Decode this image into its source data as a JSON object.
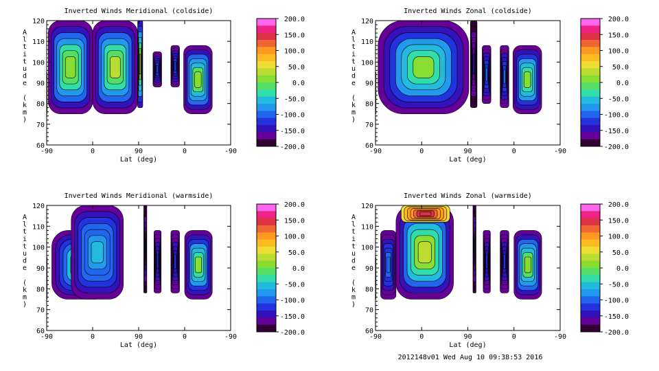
{
  "footer_text": "2012148v01 Wed Aug 10 09:38:53 2016",
  "colorbar": {
    "ticks": [
      "200.0",
      "150.0",
      "100.0",
      "50.0",
      "0.0",
      "-50.0",
      "-100.0",
      "-150.0",
      "-200.0"
    ],
    "colors": [
      "#ff66ee",
      "#ee2288",
      "#dd3344",
      "#ee6633",
      "#ff9922",
      "#ffbb22",
      "#eedd33",
      "#bbdd33",
      "#88dd33",
      "#55dd66",
      "#33ddaa",
      "#22bbdd",
      "#2299ee",
      "#2266ee",
      "#2233dd",
      "#3311bb",
      "#660099",
      "#330033"
    ]
  },
  "chart_data": [
    {
      "type": "heatmap",
      "title": "Inverted Winds Meridional (coldside)",
      "xlabel": "Lat (deg)",
      "ylabel": "Altitude (km)",
      "x_ticks": [
        "-90",
        "0",
        "90",
        "0",
        "-90"
      ],
      "y_ticks": [
        "120",
        "110",
        "100",
        "90",
        "80",
        "70",
        "60"
      ],
      "ylim": [
        60,
        120
      ],
      "color_range": [
        -200,
        200
      ],
      "regions": [
        {
          "lat": [
            -93,
            -89
          ],
          "alt": [
            75,
            95
          ],
          "peak": -170,
          "edge": -185
        },
        {
          "lat": [
            -87,
            0
          ],
          "alt": [
            75,
            120
          ],
          "peak": 20,
          "edge": -170
        },
        {
          "lat": [
            0,
            88
          ],
          "alt": [
            75,
            120
          ],
          "peak": 30,
          "edge": -170
        },
        {
          "lat": [
            88,
            98
          ],
          "alt": [
            78,
            120
          ],
          "peak": 40,
          "edge": -150
        },
        {
          "lat": [
            118,
            135
          ],
          "alt": [
            88,
            105
          ],
          "peak": -120,
          "edge": -170
        },
        {
          "lat": [
            153,
            170
          ],
          "alt": [
            88,
            108
          ],
          "peak": -120,
          "edge": -170
        },
        {
          "lat": [
            178,
            234
          ],
          "alt": [
            75,
            108
          ],
          "peak": 20,
          "edge": -175
        }
      ]
    },
    {
      "type": "heatmap",
      "title": "Inverted Winds Zonal (coldside)",
      "xlabel": "Lat (deg)",
      "ylabel": "Altitude (km)",
      "x_ticks": [
        "-90",
        "0",
        "90",
        "0",
        "-90"
      ],
      "y_ticks": [
        "120",
        "110",
        "100",
        "90",
        "80",
        "70",
        "60"
      ],
      "ylim": [
        60,
        120
      ],
      "color_range": [
        -200,
        200
      ],
      "regions": [
        {
          "lat": [
            -93,
            -89
          ],
          "alt": [
            75,
            95
          ],
          "peak": -170,
          "edge": -185
        },
        {
          "lat": [
            -85,
            92
          ],
          "alt": [
            75,
            120
          ],
          "peak": 5,
          "edge": -170
        },
        {
          "lat": [
            95,
            108
          ],
          "alt": [
            78,
            120
          ],
          "peak": -150,
          "edge": -185
        },
        {
          "lat": [
            118,
            135
          ],
          "alt": [
            80,
            108
          ],
          "peak": -110,
          "edge": -170
        },
        {
          "lat": [
            153,
            170
          ],
          "alt": [
            78,
            108
          ],
          "peak": -110,
          "edge": -170
        },
        {
          "lat": [
            178,
            234
          ],
          "alt": [
            75,
            108
          ],
          "peak": 5,
          "edge": -175
        }
      ]
    },
    {
      "type": "heatmap",
      "title": "Inverted Winds Meridional (warmside)",
      "xlabel": "Lat (deg)",
      "ylabel": "Altitude (km)",
      "x_ticks": [
        "-90",
        "0",
        "90",
        "0",
        "-90"
      ],
      "y_ticks": [
        "120",
        "110",
        "100",
        "90",
        "80",
        "70",
        "60"
      ],
      "ylim": [
        60,
        120
      ],
      "color_range": [
        -200,
        200
      ],
      "regions": [
        {
          "lat": [
            -93,
            -89
          ],
          "alt": [
            75,
            95
          ],
          "peak": -170,
          "edge": -185
        },
        {
          "lat": [
            -80,
            35
          ],
          "alt": [
            75,
            108
          ],
          "peak": -10,
          "edge": -170
        },
        {
          "lat": [
            -42,
            60
          ],
          "alt": [
            75,
            120
          ],
          "peak": -50,
          "edge": -170
        },
        {
          "lat": [
            100,
            106
          ],
          "alt": [
            78,
            120
          ],
          "peak": -150,
          "edge": -185
        },
        {
          "lat": [
            120,
            134
          ],
          "alt": [
            78,
            108
          ],
          "peak": -130,
          "edge": -175
        },
        {
          "lat": [
            153,
            170
          ],
          "alt": [
            78,
            108
          ],
          "peak": -130,
          "edge": -175
        },
        {
          "lat": [
            180,
            234
          ],
          "alt": [
            75,
            108
          ],
          "peak": 5,
          "edge": -175
        }
      ]
    },
    {
      "type": "heatmap",
      "title": "Inverted Winds Zonal (warmside)",
      "xlabel": "Lat (deg)",
      "ylabel": "Altitude (km)",
      "x_ticks": [
        "-90",
        "0",
        "90",
        "0",
        "-90"
      ],
      "y_ticks": [
        "120",
        "110",
        "100",
        "90",
        "80",
        "70",
        "60"
      ],
      "ylim": [
        60,
        120
      ],
      "color_range": [
        -200,
        200
      ],
      "regions": [
        {
          "lat": [
            -93,
            -89
          ],
          "alt": [
            75,
            95
          ],
          "peak": -170,
          "edge": -185
        },
        {
          "lat": [
            -80,
            -50
          ],
          "alt": [
            75,
            108
          ],
          "peak": -90,
          "edge": -175
        },
        {
          "lat": [
            -50,
            62
          ],
          "alt": [
            75,
            120
          ],
          "peak": 40,
          "edge": -170
        },
        {
          "lat": [
            -40,
            55
          ],
          "alt": [
            112,
            120
          ],
          "peak": 150,
          "edge": 60
        },
        {
          "lat": [
            100,
            106
          ],
          "alt": [
            78,
            120
          ],
          "peak": -150,
          "edge": -185
        },
        {
          "lat": [
            120,
            134
          ],
          "alt": [
            78,
            108
          ],
          "peak": -130,
          "edge": -175
        },
        {
          "lat": [
            153,
            170
          ],
          "alt": [
            78,
            108
          ],
          "peak": -130,
          "edge": -175
        },
        {
          "lat": [
            180,
            234
          ],
          "alt": [
            75,
            108
          ],
          "peak": 20,
          "edge": -175
        }
      ]
    }
  ]
}
